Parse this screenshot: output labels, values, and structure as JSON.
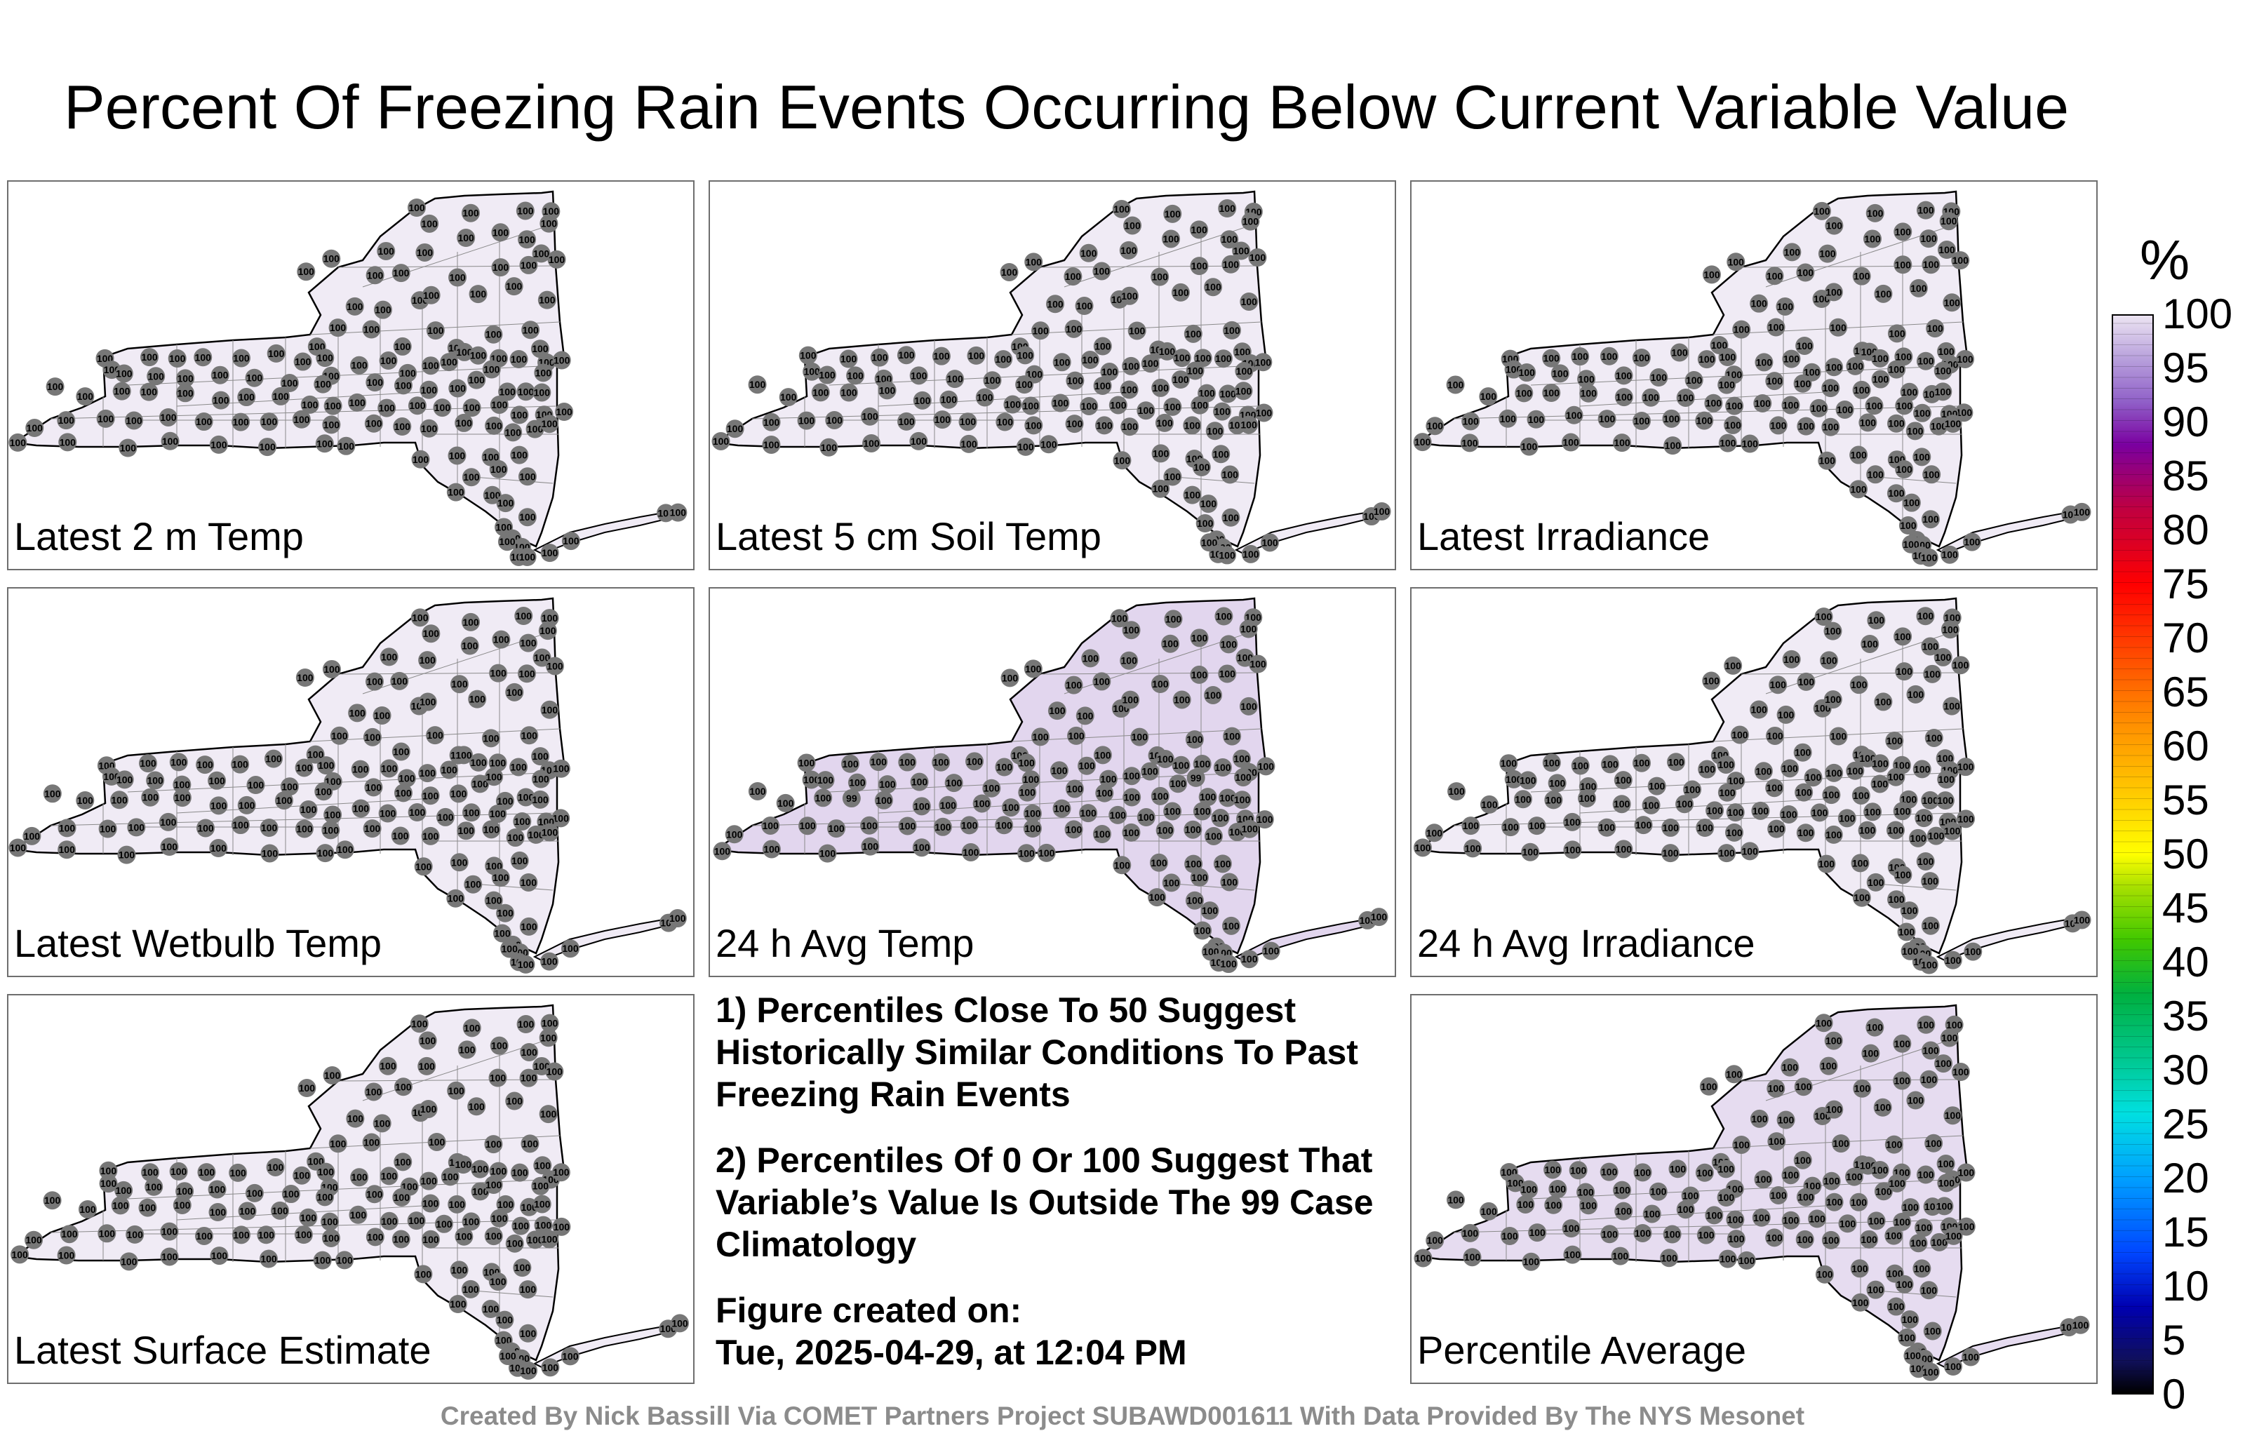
{
  "title": "Percent Of Freezing Rain Events Occurring Below Current Variable Value",
  "panels": [
    {
      "label": "Latest 2 m Temp",
      "fill": "#f0ebf5"
    },
    {
      "label": "Latest 5 cm Soil Temp",
      "fill": "#f0ebf5"
    },
    {
      "label": "Latest Irradiance",
      "fill": "#f0ebf5"
    },
    {
      "label": "Latest Wetbulb Temp",
      "fill": "#f0ebf5"
    },
    {
      "label": "24 h Avg Temp",
      "fill": "#e2d6ee"
    },
    {
      "label": "24 h Avg Irradiance",
      "fill": "#f0ebf5"
    },
    {
      "label": "Latest Surface Estimate",
      "fill": "#f0ebf5"
    },
    {
      "label": "Percentile Average",
      "fill": "#e6dcf0"
    }
  ],
  "station_value": "100",
  "alt_station_value": "99",
  "notes": {
    "note1": "1) Percentiles Close To 50 Suggest Historically Similar Conditions To Past Freezing Rain Events",
    "note2": "2) Percentiles Of 0 Or 100 Suggest That Variable’s Value Is Outside The 99 Case Climatology",
    "created_label": "Figure created on:",
    "created_date": "Tue, 2025-04-29, at 12:04 PM"
  },
  "colorbar": {
    "unit": "%",
    "ticks": [
      "100",
      "95",
      "90",
      "85",
      "80",
      "75",
      "70",
      "65",
      "60",
      "55",
      "50",
      "45",
      "40",
      "35",
      "30",
      "25",
      "20",
      "15",
      "10",
      "5",
      "0"
    ]
  },
  "footer": "Created By Nick Bassill Via COMET Partners Project SUBAWD001611 With Data Provided By The NYS Mesonet"
}
